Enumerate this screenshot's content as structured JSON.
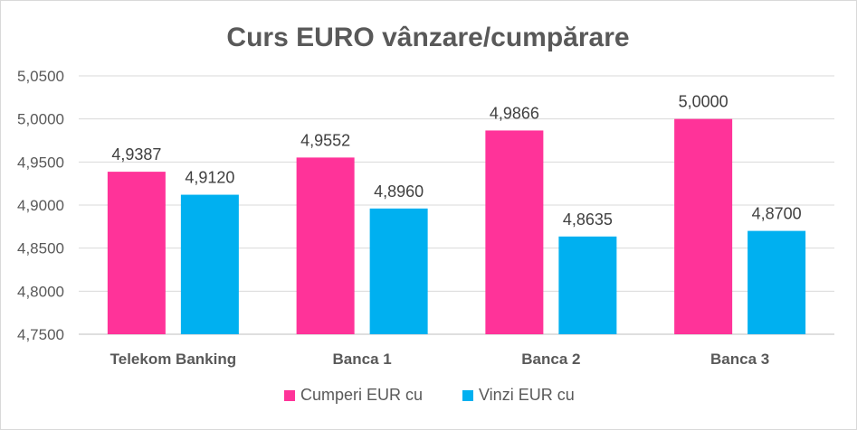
{
  "chart_data": {
    "type": "bar",
    "title": "Curs EURO vânzare/cumpărare",
    "categories": [
      "Telekom Banking",
      "Banca 1",
      "Banca 2",
      "Banca 3"
    ],
    "series": [
      {
        "name": "Cumperi EUR cu",
        "color": "#ff3399",
        "values": [
          4.9387,
          4.9552,
          4.9866,
          5.0
        ],
        "labels": [
          "4,9387",
          "4,9552",
          "4,9866",
          "5,0000"
        ]
      },
      {
        "name": "Vinzi EUR cu",
        "color": "#00b0f0",
        "values": [
          4.912,
          4.896,
          4.8635,
          4.87
        ],
        "labels": [
          "4,9120",
          "4,8960",
          "4,8635",
          "4,8700"
        ]
      }
    ],
    "ylim": [
      4.75,
      5.05
    ],
    "yticks": [
      4.75,
      4.8,
      4.85,
      4.9,
      4.95,
      5.0,
      5.05
    ],
    "ytick_labels": [
      "4,7500",
      "4,8000",
      "4,8500",
      "4,9000",
      "4,9500",
      "5,0000",
      "5,0500"
    ],
    "grid": true,
    "legend_position": "bottom",
    "xlabel": "",
    "ylabel": ""
  }
}
